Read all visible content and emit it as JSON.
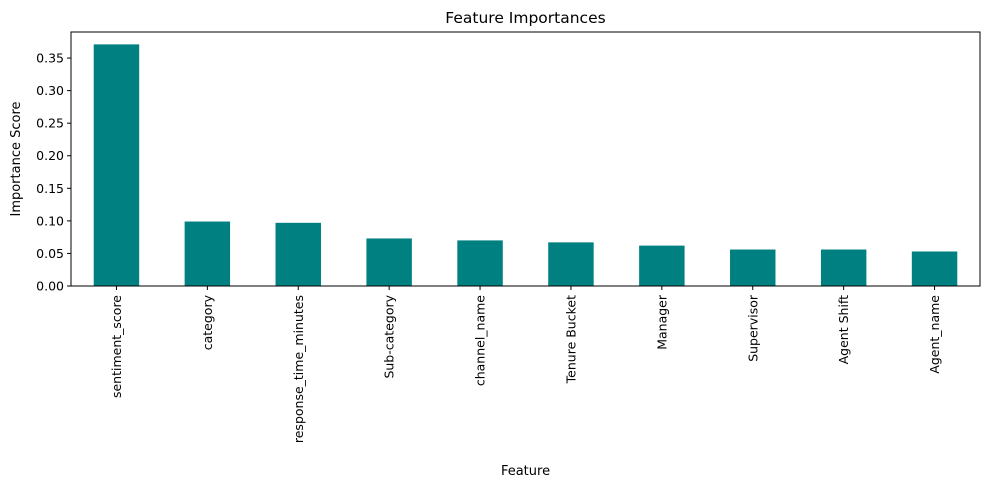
{
  "chart_data": {
    "type": "bar",
    "title": "Feature Importances",
    "xlabel": "Feature",
    "ylabel": "Importance Score",
    "categories": [
      "sentiment_score",
      "category",
      "response_time_minutes",
      "Sub-category",
      "channel_name",
      "Tenure Bucket",
      "Manager",
      "Supervisor",
      "Agent Shift",
      "Agent_name"
    ],
    "values": [
      0.371,
      0.099,
      0.097,
      0.073,
      0.07,
      0.067,
      0.062,
      0.056,
      0.056,
      0.053
    ],
    "yticks": [
      "0.00",
      "0.05",
      "0.10",
      "0.15",
      "0.20",
      "0.25",
      "0.30",
      "0.35"
    ],
    "ylim": [
      0,
      0.39
    ],
    "bar_color": "#008080",
    "grid": false,
    "legend": "none"
  }
}
